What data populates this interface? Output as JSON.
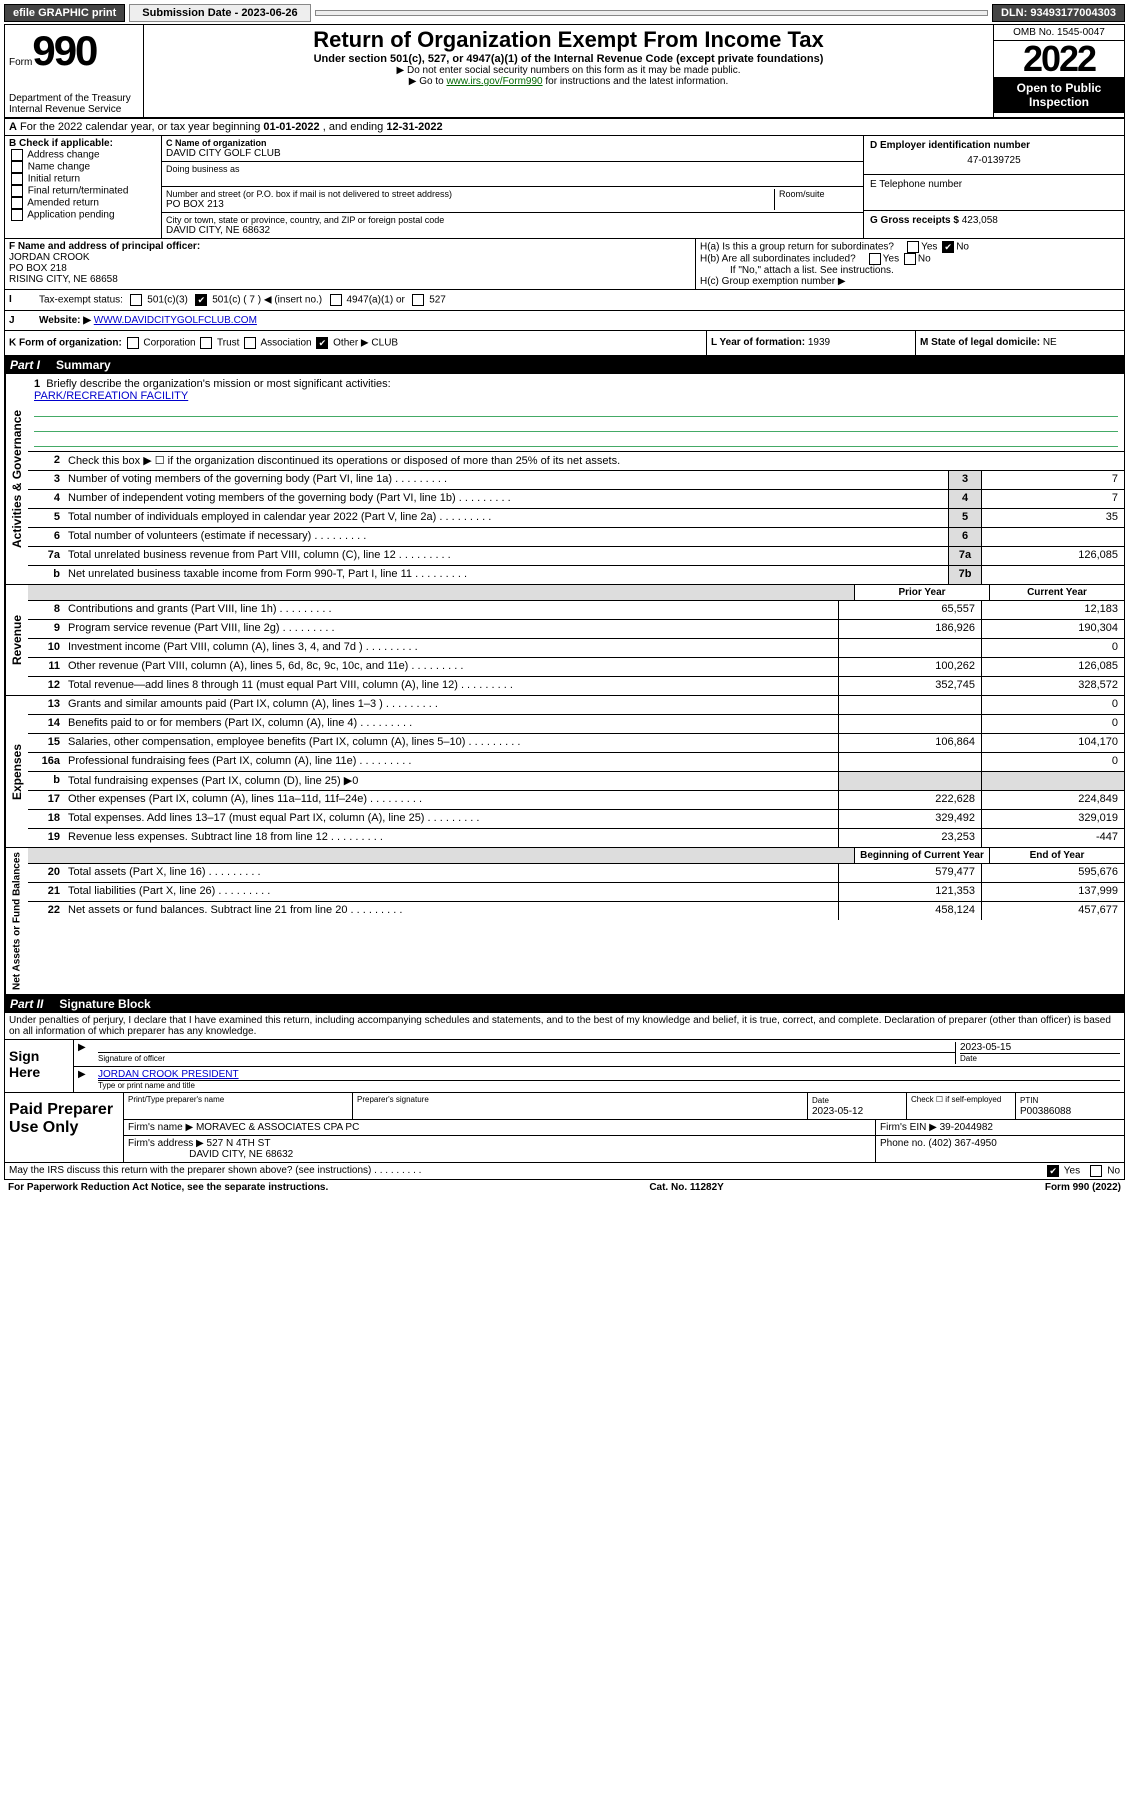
{
  "topbar": {
    "efile": "efile GRAPHIC print",
    "submission": "Submission Date - 2023-06-26",
    "dln": "DLN: 93493177004303"
  },
  "header": {
    "form": "Form",
    "formnum": "990",
    "title": "Return of Organization Exempt From Income Tax",
    "sub": "Under section 501(c), 527, or 4947(a)(1) of the Internal Revenue Code (except private foundations)",
    "note1": "▶ Do not enter social security numbers on this form as it may be made public.",
    "note2_pre": "▶ Go to ",
    "note2_link": "www.irs.gov/Form990",
    "note2_post": " for instructions and the latest information.",
    "dept": "Department of the Treasury\nInternal Revenue Service",
    "omb": "OMB No. 1545-0047",
    "year": "2022",
    "inspect": "Open to Public Inspection"
  },
  "A": {
    "text": "For the 2022 calendar year, or tax year beginning ",
    "begin": "01-01-2022",
    "mid": " , and ending ",
    "end": "12-31-2022"
  },
  "B": {
    "label": "B Check if applicable:",
    "items": [
      "Address change",
      "Name change",
      "Initial return",
      "Final return/terminated",
      "Amended return",
      "Application pending"
    ]
  },
  "C": {
    "name_label": "C Name of organization",
    "name": "DAVID CITY GOLF CLUB",
    "dba_label": "Doing business as",
    "addr_label": "Number and street (or P.O. box if mail is not delivered to street address)",
    "room_label": "Room/suite",
    "addr": "PO BOX 213",
    "city_label": "City or town, state or province, country, and ZIP or foreign postal code",
    "city": "DAVID CITY, NE  68632"
  },
  "D": {
    "label": "D Employer identification number",
    "val": "47-0139725"
  },
  "E": {
    "label": "E Telephone number",
    "val": ""
  },
  "G": {
    "label": "G Gross receipts $",
    "val": "423,058"
  },
  "F": {
    "label": "F Name and address of principal officer:",
    "name": "JORDAN CROOK",
    "addr1": "PO BOX 218",
    "addr2": "RISING CITY, NE  68658"
  },
  "H": {
    "a": "H(a)  Is this a group return for subordinates?",
    "b": "H(b)  Are all subordinates included?",
    "b_note": "If \"No,\" attach a list. See instructions.",
    "c": "H(c)  Group exemption number ▶"
  },
  "I": {
    "label": "Tax-exempt status:",
    "opt1": "501(c)(3)",
    "opt2": "501(c) ( 7 ) ◀ (insert no.)",
    "opt3": "4947(a)(1) or",
    "opt4": "527"
  },
  "J": {
    "label": "Website: ▶",
    "val": "WWW.DAVIDCITYGOLFCLUB.COM"
  },
  "K": {
    "label": "K Form of organization:",
    "opts": [
      "Corporation",
      "Trust",
      "Association",
      "Other ▶"
    ],
    "other": "CLUB"
  },
  "L": {
    "label": "L Year of formation:",
    "val": "1939"
  },
  "M": {
    "label": "M State of legal domicile:",
    "val": "NE"
  },
  "part1": {
    "roman": "Part I",
    "title": "Summary"
  },
  "mission": {
    "num": "1",
    "label": "Briefly describe the organization's mission or most significant activities:",
    "val": "PARK/RECREATION FACILITY"
  },
  "line2": {
    "num": "2",
    "label": "Check this box ▶ ☐  if the organization discontinued its operations or disposed of more than 25% of its net assets."
  },
  "gov_lines": [
    {
      "num": "3",
      "label": "Number of voting members of the governing body (Part VI, line 1a)",
      "box": "3",
      "val": "7"
    },
    {
      "num": "4",
      "label": "Number of independent voting members of the governing body (Part VI, line 1b)",
      "box": "4",
      "val": "7"
    },
    {
      "num": "5",
      "label": "Total number of individuals employed in calendar year 2022 (Part V, line 2a)",
      "box": "5",
      "val": "35"
    },
    {
      "num": "6",
      "label": "Total number of volunteers (estimate if necessary)",
      "box": "6",
      "val": ""
    },
    {
      "num": "7a",
      "label": "Total unrelated business revenue from Part VIII, column (C), line 12",
      "box": "7a",
      "val": "126,085"
    },
    {
      "num": "b",
      "label": "Net unrelated business taxable income from Form 990-T, Part I, line 11",
      "box": "7b",
      "val": ""
    }
  ],
  "col_headers": {
    "prior": "Prior Year",
    "current": "Current Year",
    "begin": "Beginning of Current Year",
    "end": "End of Year"
  },
  "rev_lines": [
    {
      "num": "8",
      "label": "Contributions and grants (Part VIII, line 1h)",
      "prior": "65,557",
      "curr": "12,183"
    },
    {
      "num": "9",
      "label": "Program service revenue (Part VIII, line 2g)",
      "prior": "186,926",
      "curr": "190,304"
    },
    {
      "num": "10",
      "label": "Investment income (Part VIII, column (A), lines 3, 4, and 7d )",
      "prior": "",
      "curr": "0"
    },
    {
      "num": "11",
      "label": "Other revenue (Part VIII, column (A), lines 5, 6d, 8c, 9c, 10c, and 11e)",
      "prior": "100,262",
      "curr": "126,085"
    },
    {
      "num": "12",
      "label": "Total revenue—add lines 8 through 11 (must equal Part VIII, column (A), line 12)",
      "prior": "352,745",
      "curr": "328,572"
    }
  ],
  "exp_lines": [
    {
      "num": "13",
      "label": "Grants and similar amounts paid (Part IX, column (A), lines 1–3 )",
      "prior": "",
      "curr": "0"
    },
    {
      "num": "14",
      "label": "Benefits paid to or for members (Part IX, column (A), line 4)",
      "prior": "",
      "curr": "0"
    },
    {
      "num": "15",
      "label": "Salaries, other compensation, employee benefits (Part IX, column (A), lines 5–10)",
      "prior": "106,864",
      "curr": "104,170"
    },
    {
      "num": "16a",
      "label": "Professional fundraising fees (Part IX, column (A), line 11e)",
      "prior": "",
      "curr": "0"
    },
    {
      "num": "b",
      "label": "Total fundraising expenses (Part IX, column (D), line 25) ▶0",
      "prior": "—",
      "curr": "—"
    },
    {
      "num": "17",
      "label": "Other expenses (Part IX, column (A), lines 11a–11d, 11f–24e)",
      "prior": "222,628",
      "curr": "224,849"
    },
    {
      "num": "18",
      "label": "Total expenses. Add lines 13–17 (must equal Part IX, column (A), line 25)",
      "prior": "329,492",
      "curr": "329,019"
    },
    {
      "num": "19",
      "label": "Revenue less expenses. Subtract line 18 from line 12",
      "prior": "23,253",
      "curr": "-447"
    }
  ],
  "net_lines": [
    {
      "num": "20",
      "label": "Total assets (Part X, line 16)",
      "prior": "579,477",
      "curr": "595,676"
    },
    {
      "num": "21",
      "label": "Total liabilities (Part X, line 26)",
      "prior": "121,353",
      "curr": "137,999"
    },
    {
      "num": "22",
      "label": "Net assets or fund balances. Subtract line 21 from line 20",
      "prior": "458,124",
      "curr": "457,677"
    }
  ],
  "part2": {
    "roman": "Part II",
    "title": "Signature Block"
  },
  "penalty": "Under penalties of perjury, I declare that I have examined this return, including accompanying schedules and statements, and to the best of my knowledge and belief, it is true, correct, and complete. Declaration of preparer (other than officer) is based on all information of which preparer has any knowledge.",
  "sign": {
    "here": "Sign Here",
    "sig_label": "Signature of officer",
    "date": "2023-05-15",
    "date_label": "Date",
    "name": "JORDAN CROOK  PRESIDENT",
    "name_label": "Type or print name and title"
  },
  "prep": {
    "title": "Paid Preparer Use Only",
    "h_name": "Print/Type preparer's name",
    "h_sig": "Preparer's signature",
    "h_date": "Date",
    "date": "2023-05-12",
    "h_check": "Check ☐ if self-employed",
    "h_ptin": "PTIN",
    "ptin": "P00386088",
    "firm_label": "Firm's name    ▶",
    "firm": "MORAVEC & ASSOCIATES CPA PC",
    "ein_label": "Firm's EIN ▶",
    "ein": "39-2044982",
    "addr_label": "Firm's address ▶",
    "addr1": "527 N 4TH ST",
    "addr2": "DAVID CITY, NE  68632",
    "phone_label": "Phone no.",
    "phone": "(402) 367-4950"
  },
  "discuss": "May the IRS discuss this return with the preparer shown above? (see instructions)",
  "footer": {
    "left": "For Paperwork Reduction Act Notice, see the separate instructions.",
    "mid": "Cat. No. 11282Y",
    "right": "Form 990 (2022)"
  },
  "sidelabels": {
    "gov": "Activities & Governance",
    "rev": "Revenue",
    "exp": "Expenses",
    "net": "Net Assets or Fund Balances"
  }
}
